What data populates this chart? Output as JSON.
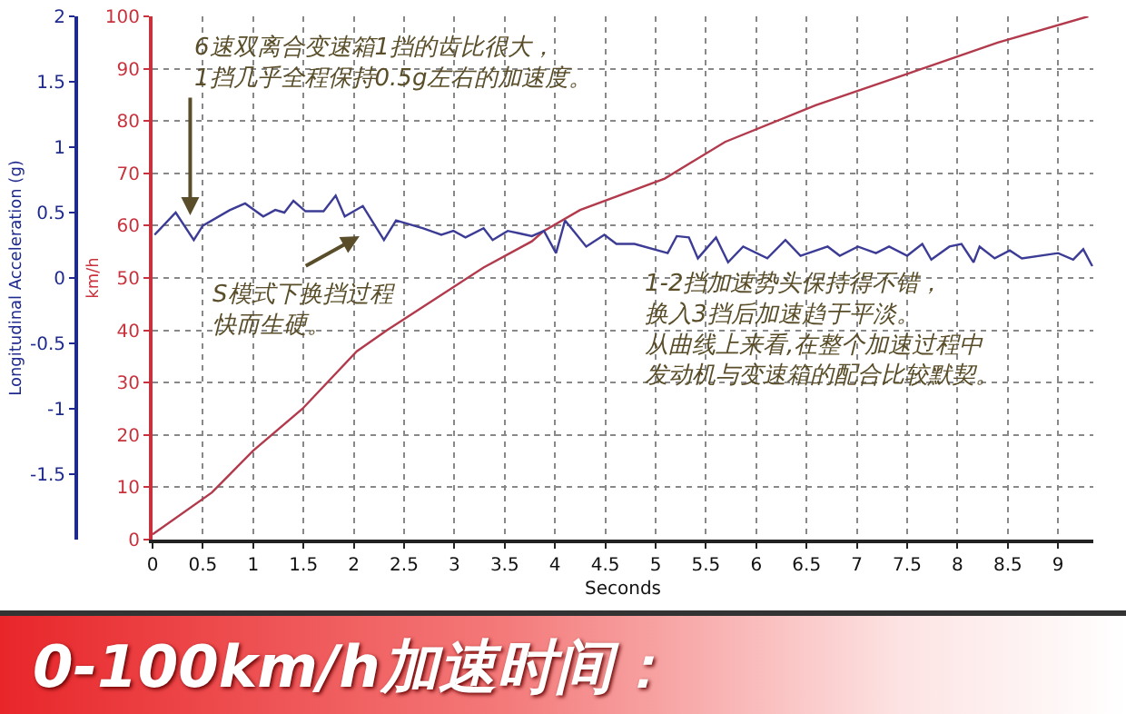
{
  "chart_data": {
    "type": "line",
    "title": "0-100km/h加速时间：",
    "xlabel": "Seconds",
    "ylabel": "km/h",
    "y2label": "Longitudinal Acceleration (g)",
    "xlim": [
      0,
      9.35
    ],
    "xticks": [
      0,
      0.5,
      1,
      1.5,
      2,
      2.5,
      3,
      3.5,
      4,
      4.5,
      5,
      5.5,
      6,
      6.5,
      7,
      7.5,
      8,
      8.5,
      9
    ],
    "ylim": [
      0,
      100
    ],
    "yticks": [
      0,
      10,
      20,
      30,
      40,
      50,
      60,
      70,
      80,
      90,
      100
    ],
    "y2lim": [
      -2,
      2
    ],
    "y2ticks": [
      -1.5,
      -1,
      -0.5,
      0,
      0.5,
      1,
      1.5,
      2
    ],
    "grid": true,
    "line_style": "solid",
    "series": [
      {
        "color": "#b23a4c",
        "x": [
          0,
          0.59,
          1.0,
          1.49,
          2.03,
          2.33,
          2.81,
          3.29,
          3.77,
          3.89,
          4.25,
          5.09,
          5.69,
          6.59,
          7.5,
          8.4,
          9.3
        ],
        "values": [
          1,
          9,
          17,
          25,
          36,
          40,
          46,
          52,
          57,
          59,
          63,
          69,
          76,
          83,
          89,
          95,
          100
        ]
      },
      {
        "color": "#3c3c96",
        "axis": "y2",
        "x": [
          0.02,
          0.23,
          0.41,
          0.5,
          0.77,
          0.92,
          1.1,
          1.22,
          1.31,
          1.4,
          1.52,
          1.7,
          1.82,
          1.91,
          2.09,
          2.3,
          2.42,
          2.69,
          2.87,
          2.99,
          3.11,
          3.29,
          3.38,
          3.53,
          3.65,
          3.77,
          3.89,
          4.01,
          4.1,
          4.31,
          4.49,
          4.61,
          4.79,
          5.12,
          5.21,
          5.33,
          5.42,
          5.6,
          5.72,
          5.87,
          6.11,
          6.29,
          6.44,
          6.71,
          6.83,
          7.01,
          7.19,
          7.32,
          7.5,
          7.65,
          7.74,
          7.92,
          8.04,
          8.16,
          8.22,
          8.37,
          8.52,
          8.64,
          9.0,
          9.15,
          9.25,
          9.34
        ],
        "values": [
          0.33,
          0.5,
          0.29,
          0.4,
          0.52,
          0.57,
          0.47,
          0.52,
          0.5,
          0.59,
          0.51,
          0.51,
          0.63,
          0.47,
          0.55,
          0.29,
          0.44,
          0.38,
          0.33,
          0.36,
          0.31,
          0.38,
          0.29,
          0.36,
          0.34,
          0.32,
          0.36,
          0.19,
          0.44,
          0.24,
          0.33,
          0.26,
          0.26,
          0.19,
          0.32,
          0.31,
          0.15,
          0.31,
          0.12,
          0.24,
          0.15,
          0.29,
          0.17,
          0.24,
          0.17,
          0.24,
          0.19,
          0.24,
          0.17,
          0.26,
          0.14,
          0.24,
          0.26,
          0.12,
          0.24,
          0.15,
          0.21,
          0.15,
          0.19,
          0.14,
          0.22,
          0.09
        ]
      }
    ],
    "annotations": [
      "6速双离合变速箱1挡的齿比很大，1挡几乎全程保持0.5g左右的加速度。",
      "S模式下换挡过程快而生硬。",
      "1-2挡加速势头保持得不错，换入3挡后加速趋于平淡。从曲线上来看,在整个加速过程中发动机与变速箱的配合比较默契。"
    ]
  }
}
